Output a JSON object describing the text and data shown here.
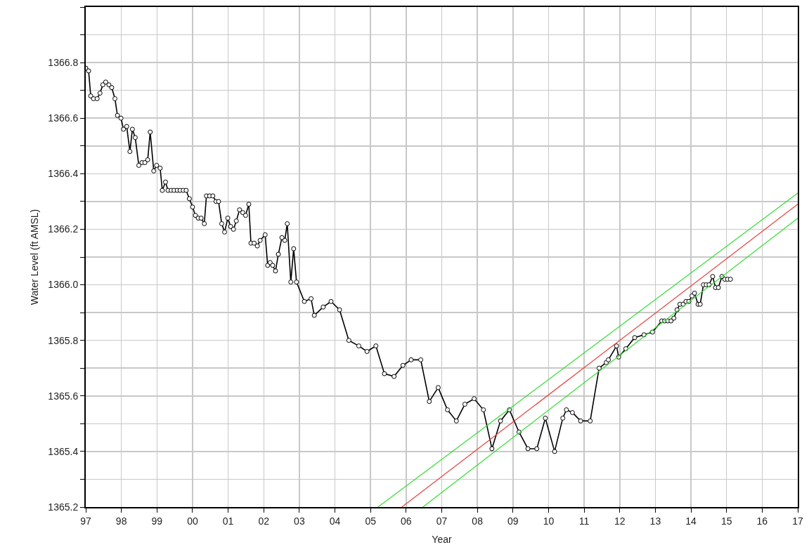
{
  "chart_data": {
    "type": "line",
    "xlabel": "Year",
    "ylabel": "Water Level (ft AMSL)",
    "xlim": [
      1997,
      2017
    ],
    "xticks": [
      {
        "value": 1997,
        "label": "97"
      },
      {
        "value": 1998,
        "label": "98"
      },
      {
        "value": 1999,
        "label": "99"
      },
      {
        "value": 2000,
        "label": "00"
      },
      {
        "value": 2001,
        "label": "01"
      },
      {
        "value": 2002,
        "label": "02"
      },
      {
        "value": 2003,
        "label": "03"
      },
      {
        "value": 2004,
        "label": "04"
      },
      {
        "value": 2005,
        "label": "05"
      },
      {
        "value": 2006,
        "label": "06"
      },
      {
        "value": 2007,
        "label": "07"
      },
      {
        "value": 2008,
        "label": "08"
      },
      {
        "value": 2009,
        "label": "09"
      },
      {
        "value": 2010,
        "label": "10"
      },
      {
        "value": 2011,
        "label": "11"
      },
      {
        "value": 2012,
        "label": "12"
      },
      {
        "value": 2013,
        "label": "13"
      },
      {
        "value": 2014,
        "label": "14"
      },
      {
        "value": 2015,
        "label": "15"
      },
      {
        "value": 2016,
        "label": "16"
      },
      {
        "value": 2017,
        "label": "17"
      }
    ],
    "ylim": [
      1365.2,
      1367.0
    ],
    "yticks": [
      {
        "value": 1365.2,
        "label": "1365.2"
      },
      {
        "value": 1365.3,
        "label": null
      },
      {
        "value": 1365.4,
        "label": "1365.4"
      },
      {
        "value": 1365.5,
        "label": null
      },
      {
        "value": 1365.6,
        "label": "1365.6"
      },
      {
        "value": 1365.7,
        "label": null
      },
      {
        "value": 1365.8,
        "label": "1365.8"
      },
      {
        "value": 1365.9,
        "label": null
      },
      {
        "value": 1366.0,
        "label": "1366.0"
      },
      {
        "value": 1366.1,
        "label": null
      },
      {
        "value": 1366.2,
        "label": "1366.2"
      },
      {
        "value": 1366.3,
        "label": null
      },
      {
        "value": 1366.4,
        "label": "1366.4"
      },
      {
        "value": 1366.5,
        "label": null
      },
      {
        "value": 1366.6,
        "label": "1366.6"
      },
      {
        "value": 1366.7,
        "label": null
      },
      {
        "value": 1366.8,
        "label": "1366.8"
      },
      {
        "value": 1366.9,
        "label": null
      },
      {
        "value": 1367.0,
        "label": null
      }
    ],
    "grid": true,
    "marker": "circle",
    "line_style": "solid",
    "series": [
      {
        "color": "#000000",
        "x": [
          1997.0,
          1997.08,
          1997.14,
          1997.22,
          1997.32,
          1997.4,
          1997.48,
          1997.56,
          1997.65,
          1997.73,
          1997.82,
          1997.89,
          1997.99,
          1998.06,
          1998.15,
          1998.24,
          1998.31,
          1998.39,
          1998.49,
          1998.58,
          1998.66,
          1998.74,
          1998.81,
          1998.91,
          1998.99,
          1999.09,
          1999.15,
          1999.24,
          1999.31,
          1999.4,
          1999.48,
          1999.57,
          1999.65,
          1999.74,
          1999.82,
          1999.91,
          2000.0,
          2000.08,
          2000.16,
          2000.24,
          2000.33,
          2000.39,
          2000.48,
          2000.57,
          2000.66,
          2000.73,
          2000.82,
          2000.9,
          2000.99,
          2001.07,
          2001.15,
          2001.23,
          2001.32,
          2001.41,
          2001.49,
          2001.58,
          2001.64,
          2001.73,
          2001.82,
          2001.9,
          2002.04,
          2002.11,
          2002.18,
          2002.25,
          2002.33,
          2002.41,
          2002.51,
          2002.59,
          2002.66,
          2002.76,
          2002.84,
          2002.92,
          2003.14,
          2003.33,
          2003.42,
          2003.67,
          2003.89,
          2004.13,
          2004.39,
          2004.67,
          2004.9,
          2005.15,
          2005.39,
          2005.66,
          2005.91,
          2006.14,
          2006.41,
          2006.65,
          2006.9,
          2007.16,
          2007.41,
          2007.65,
          2007.91,
          2008.17,
          2008.41,
          2008.65,
          2008.9,
          2009.17,
          2009.42,
          2009.67,
          2009.91,
          2010.17,
          2010.4,
          2010.5,
          2010.67,
          2010.9,
          2011.17,
          2011.42,
          2011.62,
          2011.68,
          2011.91,
          2011.97,
          2012.17,
          2012.42,
          2012.68,
          2012.92,
          2013.18,
          2013.26,
          2013.35,
          2013.44,
          2013.52,
          2013.61,
          2013.69,
          2013.78,
          2013.86,
          2013.94,
          2014.03,
          2014.1,
          2014.2,
          2014.26,
          2014.35,
          2014.43,
          2014.51,
          2014.61,
          2014.69,
          2014.77,
          2014.87,
          2014.95,
          2015.03,
          2015.11
        ],
        "values": [
          1366.78,
          1366.77,
          1366.68,
          1366.67,
          1366.67,
          1366.69,
          1366.72,
          1366.73,
          1366.72,
          1366.71,
          1366.67,
          1366.61,
          1366.6,
          1366.56,
          1366.57,
          1366.48,
          1366.56,
          1366.53,
          1366.43,
          1366.44,
          1366.44,
          1366.45,
          1366.55,
          1366.41,
          1366.43,
          1366.42,
          1366.34,
          1366.37,
          1366.34,
          1366.34,
          1366.34,
          1366.34,
          1366.34,
          1366.34,
          1366.34,
          1366.31,
          1366.28,
          1366.25,
          1366.24,
          1366.24,
          1366.22,
          1366.32,
          1366.32,
          1366.32,
          1366.3,
          1366.3,
          1366.22,
          1366.19,
          1366.24,
          1366.21,
          1366.2,
          1366.23,
          1366.27,
          1366.26,
          1366.25,
          1366.29,
          1366.15,
          1366.15,
          1366.14,
          1366.16,
          1366.18,
          1366.07,
          1366.08,
          1366.07,
          1366.05,
          1366.11,
          1366.17,
          1366.16,
          1366.22,
          1366.01,
          1366.13,
          1366.01,
          1365.94,
          1365.95,
          1365.89,
          1365.92,
          1365.94,
          1365.91,
          1365.8,
          1365.78,
          1365.76,
          1365.78,
          1365.68,
          1365.67,
          1365.71,
          1365.73,
          1365.73,
          1365.58,
          1365.63,
          1365.55,
          1365.51,
          1365.57,
          1365.59,
          1365.55,
          1365.41,
          1365.51,
          1365.55,
          1365.47,
          1365.41,
          1365.41,
          1365.52,
          1365.4,
          1365.52,
          1365.55,
          1365.54,
          1365.51,
          1365.51,
          1365.7,
          1365.72,
          1365.73,
          1365.78,
          1365.74,
          1365.77,
          1365.81,
          1365.82,
          1365.83,
          1365.87,
          1365.87,
          1365.87,
          1365.87,
          1365.88,
          1365.91,
          1365.93,
          1365.93,
          1365.94,
          1365.94,
          1365.96,
          1365.97,
          1365.93,
          1365.93,
          1366.0,
          1366.0,
          1366.0,
          1366.03,
          1365.99,
          1365.99,
          1366.03,
          1366.02,
          1366.02,
          1366.02
        ]
      },
      {
        "type": "line",
        "marker": "none",
        "color": "#e8403c",
        "x": [
          2005.88,
          2017
        ],
        "values": [
          1365.2,
          1366.29
        ]
      },
      {
        "type": "line",
        "marker": "none",
        "color": "#33dd33",
        "x": [
          2005.21,
          2017
        ],
        "values": [
          1365.2,
          1366.33
        ]
      },
      {
        "type": "line",
        "marker": "none",
        "color": "#33dd33",
        "x": [
          2006.47,
          2017
        ],
        "values": [
          1365.2,
          1366.24
        ]
      }
    ]
  }
}
